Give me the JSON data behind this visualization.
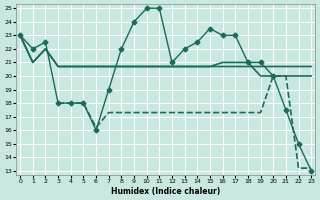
{
  "xlabel": "Humidex (Indice chaleur)",
  "xlim": [
    0,
    23
  ],
  "ylim": [
    13,
    25
  ],
  "yticks": [
    13,
    14,
    15,
    16,
    17,
    18,
    19,
    20,
    21,
    22,
    23,
    24,
    25
  ],
  "xticks": [
    0,
    1,
    2,
    3,
    4,
    5,
    6,
    7,
    8,
    9,
    10,
    11,
    12,
    13,
    14,
    15,
    16,
    17,
    18,
    19,
    20,
    21,
    22,
    23
  ],
  "bg_color": "#c8e8e0",
  "line_color": "#1a6b5a",
  "grid_color": "#ffffff",
  "series": [
    {
      "x": [
        0,
        1,
        2,
        3,
        4,
        5,
        6,
        7,
        8,
        9,
        10,
        11,
        12,
        13,
        14,
        15,
        16,
        17,
        18,
        19,
        20,
        21,
        22,
        23
      ],
      "y": [
        23,
        22,
        22.5,
        18,
        18,
        18,
        16,
        19,
        22,
        24,
        25,
        25,
        21,
        22,
        22.5,
        23.5,
        23,
        23,
        21,
        21,
        20,
        17.5,
        15,
        13
      ],
      "marker": "D",
      "markersize": 2.5,
      "linewidth": 1.0,
      "linestyle": "-"
    },
    {
      "x": [
        0,
        1,
        2,
        3,
        4,
        5,
        6,
        7,
        8,
        9,
        10,
        11,
        12,
        13,
        14,
        15,
        16,
        17,
        18,
        19,
        20,
        21,
        22,
        23
      ],
      "y": [
        23,
        21,
        22,
        20.7,
        20.7,
        20.7,
        20.7,
        20.7,
        20.7,
        20.7,
        20.7,
        20.7,
        20.7,
        20.7,
        20.7,
        20.7,
        20.7,
        20.7,
        20.7,
        20.7,
        20.7,
        20.7,
        20.7,
        20.7
      ],
      "marker": null,
      "markersize": 0,
      "linewidth": 1.2,
      "linestyle": "-"
    },
    {
      "x": [
        0,
        1,
        2,
        3,
        4,
        5,
        6,
        7,
        8,
        9,
        10,
        11,
        12,
        13,
        14,
        15,
        16,
        17,
        18,
        19,
        20,
        21,
        22,
        23
      ],
      "y": [
        23,
        21,
        22,
        20.7,
        20.7,
        20.7,
        20.7,
        20.7,
        20.7,
        20.7,
        20.7,
        20.7,
        20.7,
        20.7,
        20.7,
        20.7,
        21.0,
        21.0,
        21.0,
        20.0,
        20.0,
        20.0,
        20.0,
        20.0
      ],
      "marker": null,
      "markersize": 0,
      "linewidth": 1.2,
      "linestyle": "-"
    },
    {
      "x": [
        3,
        4,
        5,
        6,
        7,
        8,
        9,
        10,
        11,
        12,
        13,
        14,
        15,
        16,
        17,
        18,
        19,
        20,
        21,
        22,
        23
      ],
      "y": [
        18,
        18,
        18,
        16.2,
        17.3,
        17.3,
        17.3,
        17.3,
        17.3,
        17.3,
        17.3,
        17.3,
        17.3,
        17.3,
        17.3,
        17.3,
        17.3,
        20.0,
        20.0,
        13.2,
        13.2
      ],
      "marker": null,
      "markersize": 0,
      "linewidth": 1.2,
      "linestyle": "--"
    }
  ]
}
